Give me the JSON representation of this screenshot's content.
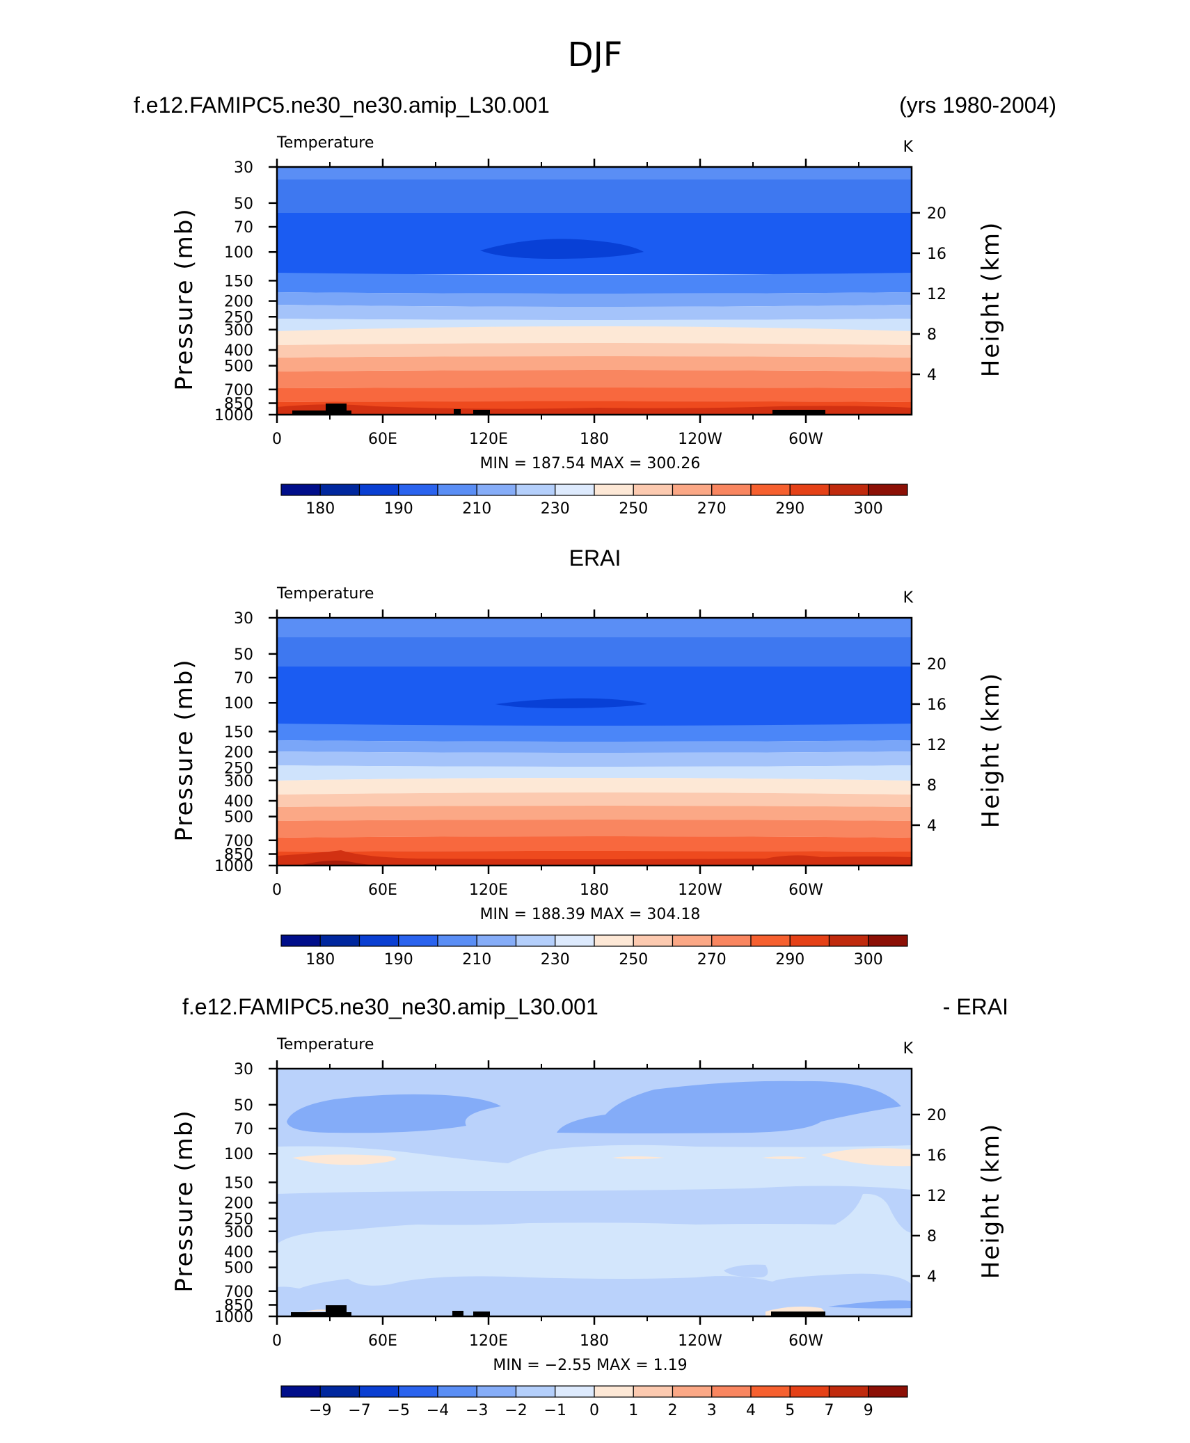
{
  "title": "DJF",
  "colors": {
    "temp_fills": [
      "#3e78f0",
      "#4b86f8",
      "#1b5cf2",
      "#0840d6",
      "#5a8ef5",
      "#7aa6f8",
      "#a4c3fa",
      "#cfe3fc",
      "#fde8d6",
      "#fccab0",
      "#fba886",
      "#f98660",
      "#f8683e",
      "#ee4a1e",
      "#d23112",
      "#a91d0a",
      "#7a0b05"
    ],
    "terrain": "#000000",
    "diff_fills": [
      "#bad2fb",
      "#84acf8",
      "#d3e6fc",
      "#fde8d6"
    ]
  },
  "chart_data": [
    {
      "type": "contour",
      "panel": "model",
      "left_header": "f.e12.FAMIPC5.ne30_ne30.amip_L30.001",
      "right_header": "(yrs 1980-2004)",
      "variable": "Temperature",
      "units": "K",
      "xlabel": "",
      "ylabel": "Pressure (mb)",
      "y2label": "Height (km)",
      "x_ticks": [
        "0",
        "60E",
        "120E",
        "180",
        "120W",
        "60W"
      ],
      "y_ticks": [
        "30",
        "50",
        "70",
        "100",
        "150",
        "200",
        "250",
        "300",
        "400",
        "500",
        "700",
        "850",
        "1000"
      ],
      "y2_ticks": [
        "20",
        "16",
        "12",
        "8",
        "4"
      ],
      "stats": "MIN = 187.54   MAX = 300.26",
      "min": 187.54,
      "max": 300.26,
      "colorbar_ticks": [
        "180",
        "190",
        "210",
        "230",
        "250",
        "270",
        "290",
        "300"
      ]
    },
    {
      "type": "contour",
      "panel": "obs",
      "left_header": "",
      "center_header": "ERAI",
      "variable": "Temperature",
      "units": "K",
      "xlabel": "",
      "ylabel": "Pressure (mb)",
      "y2label": "Height (km)",
      "x_ticks": [
        "0",
        "60E",
        "120E",
        "180",
        "120W",
        "60W"
      ],
      "y_ticks": [
        "30",
        "50",
        "70",
        "100",
        "150",
        "200",
        "250",
        "300",
        "400",
        "500",
        "700",
        "850",
        "1000"
      ],
      "y2_ticks": [
        "20",
        "16",
        "12",
        "8",
        "4"
      ],
      "stats": "MIN = 188.39   MAX = 304.18",
      "min": 188.39,
      "max": 304.18,
      "colorbar_ticks": [
        "180",
        "190",
        "210",
        "230",
        "250",
        "270",
        "290",
        "300"
      ]
    },
    {
      "type": "contour",
      "panel": "difference",
      "left_header": "f.e12.FAMIPC5.ne30_ne30.amip_L30.001",
      "right_header": "- ERAI",
      "variable": "Temperature",
      "units": "K",
      "xlabel": "",
      "ylabel": "Pressure (mb)",
      "y2label": "Height (km)",
      "x_ticks": [
        "0",
        "60E",
        "120E",
        "180",
        "120W",
        "60W"
      ],
      "y_ticks": [
        "30",
        "50",
        "70",
        "100",
        "150",
        "200",
        "250",
        "300",
        "400",
        "500",
        "700",
        "850",
        "1000"
      ],
      "y2_ticks": [
        "20",
        "16",
        "12",
        "8",
        "4"
      ],
      "stats": "MIN =    −2.55   MAX =     1.19",
      "min": -2.55,
      "max": 1.19,
      "colorbar_ticks": [
        "−9",
        "−7",
        "−5",
        "−4",
        "−3",
        "−2",
        "−1",
        "0",
        "1",
        "2",
        "3",
        "4",
        "5",
        "7",
        "9"
      ]
    }
  ]
}
